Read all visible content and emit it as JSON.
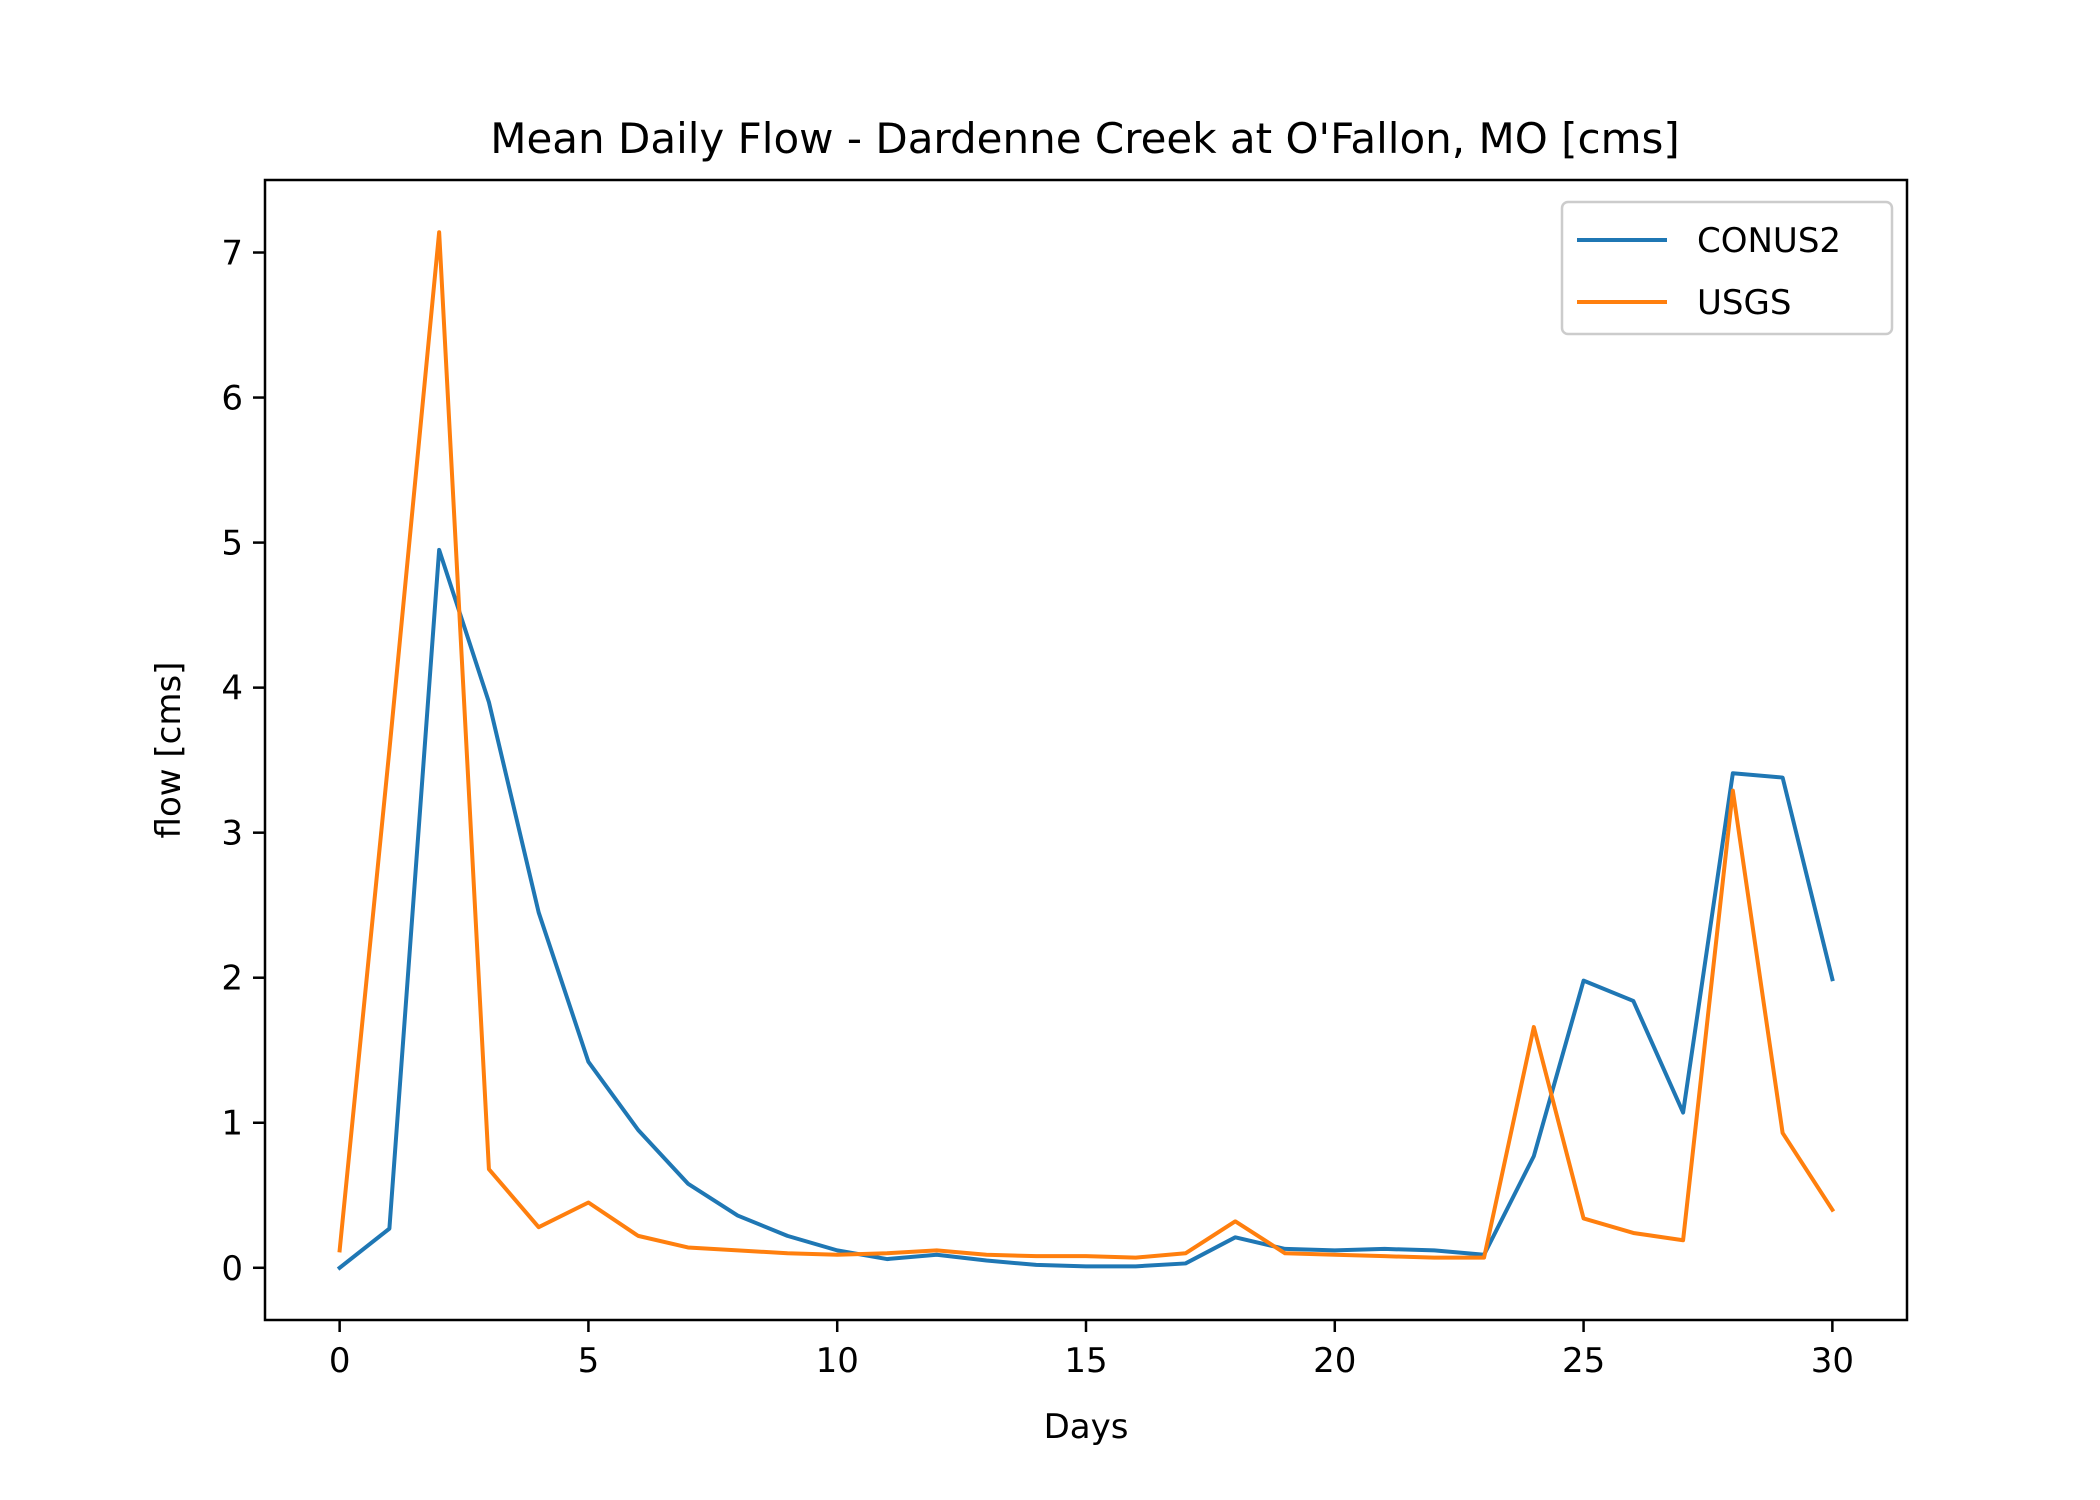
{
  "chart_data": {
    "type": "line",
    "title": "Mean Daily Flow - Dardenne Creek at O'Fallon, MO [cms]",
    "xlabel": "Days",
    "ylabel": "flow [cms]",
    "xlim": [
      -1.5,
      31.5
    ],
    "ylim": [
      -0.36,
      7.5
    ],
    "x_ticks": [
      0,
      5,
      10,
      15,
      20,
      25,
      30
    ],
    "y_ticks": [
      0,
      1,
      2,
      3,
      4,
      5,
      6,
      7
    ],
    "grid": false,
    "legend_position": "top-right",
    "x": [
      0,
      1,
      2,
      3,
      4,
      5,
      6,
      7,
      8,
      9,
      10,
      11,
      12,
      13,
      14,
      15,
      16,
      17,
      18,
      19,
      20,
      21,
      22,
      23,
      24,
      25,
      26,
      27,
      28,
      29,
      30
    ],
    "series": [
      {
        "name": "CONUS2",
        "color": "#1f77b4",
        "values": [
          0.0,
          0.27,
          4.95,
          3.9,
          2.45,
          1.42,
          0.95,
          0.58,
          0.36,
          0.22,
          0.12,
          0.06,
          0.09,
          0.05,
          0.02,
          0.01,
          0.01,
          0.03,
          0.21,
          0.13,
          0.12,
          0.13,
          0.12,
          0.09,
          0.77,
          1.98,
          1.84,
          1.07,
          3.41,
          3.38,
          1.99
        ]
      },
      {
        "name": "USGS",
        "color": "#ff7f0e",
        "values": [
          0.12,
          3.57,
          7.14,
          0.68,
          0.28,
          0.45,
          0.22,
          0.14,
          0.12,
          0.1,
          0.09,
          0.1,
          0.12,
          0.09,
          0.08,
          0.08,
          0.07,
          0.1,
          0.32,
          0.1,
          0.09,
          0.08,
          0.07,
          0.07,
          1.66,
          0.34,
          0.24,
          0.19,
          3.29,
          0.93,
          0.4
        ]
      }
    ]
  }
}
